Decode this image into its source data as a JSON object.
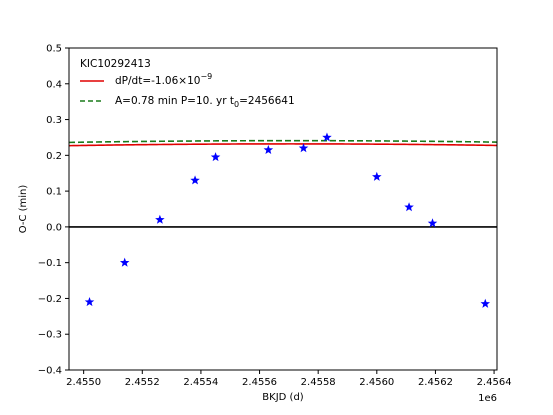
{
  "chart_data": {
    "type": "scatter",
    "title": "",
    "xlabel": "BKJD (d)",
    "ylabel": "O-C (min)",
    "x_offset_label": "1e6",
    "xlim": [
      2.45495,
      2.45641
    ],
    "ylim": [
      -0.4,
      0.5
    ],
    "x_ticks": [
      2.455,
      2.4552,
      2.4554,
      2.4556,
      2.4558,
      2.456,
      2.4562,
      2.4564
    ],
    "x_tick_labels": [
      "2.4550",
      "2.4552",
      "2.4554",
      "2.4556",
      "2.4558",
      "2.4560",
      "2.4562",
      "2.4564"
    ],
    "y_ticks": [
      -0.4,
      -0.3,
      -0.2,
      -0.1,
      0.0,
      0.1,
      0.2,
      0.3,
      0.4,
      0.5
    ],
    "y_tick_labels": [
      "−0.4",
      "−0.3",
      "−0.2",
      "−0.1",
      "0.0",
      "0.1",
      "0.2",
      "0.3",
      "0.4",
      "0.5"
    ],
    "grid": false,
    "legend_placement": "top-left",
    "legend": {
      "title": "KIC10292413",
      "entries": [
        {
          "label": "dP/dt=-1.06×10",
          "sup": "−9",
          "color": "#e00000",
          "style": "solid"
        },
        {
          "label": "A=0.78 min  P=10. yr   t",
          "sub": "0",
          "suffix": "=2456641",
          "color": "#1a7a1a",
          "style": "dashed"
        }
      ]
    },
    "points": {
      "marker": "star",
      "color": "#0000ff",
      "x": [
        2.45502,
        2.45514,
        2.45526,
        2.45538,
        2.45545,
        2.45563,
        2.45575,
        2.45583,
        2.456,
        2.45611,
        2.45619,
        2.45637
      ],
      "y": [
        -0.21,
        -0.1,
        0.02,
        0.13,
        0.195,
        0.215,
        0.22,
        0.25,
        0.14,
        0.055,
        0.01,
        -0.215
      ]
    },
    "zero_line": {
      "y": 0.0,
      "color": "#000000"
    },
    "series": [
      {
        "name": "dP/dt=-1.06×10⁻⁹",
        "type": "parabola",
        "vertex_x": 2.455705,
        "vertex_y": 0.232,
        "curvature": 0.87,
        "color": "#e00000",
        "style": "solid"
      },
      {
        "name": "A=0.78 min  P=10. yr  t0=2456641",
        "type": "parabola",
        "vertex_x": 2.45571,
        "vertex_y": 0.241,
        "curvature": 0.84,
        "color": "#1a7a1a",
        "style": "dashed"
      }
    ]
  }
}
